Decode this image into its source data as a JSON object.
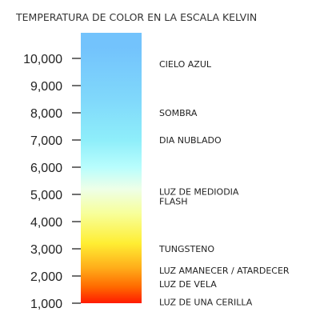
{
  "chart_data": {
    "type": "bar",
    "title": "TEMPERATURA DE COLOR EN LA ESCALA KELVIN",
    "xlabel": "",
    "ylabel": "",
    "ylim": [
      1000,
      10000
    ],
    "y_ticks": [
      {
        "value": 10000,
        "label": "10,000"
      },
      {
        "value": 9000,
        "label": "9,000"
      },
      {
        "value": 8000,
        "label": "8,000"
      },
      {
        "value": 7000,
        "label": "7,000"
      },
      {
        "value": 6000,
        "label": "6,000"
      },
      {
        "value": 5000,
        "label": "5,000"
      },
      {
        "value": 4000,
        "label": "4,000"
      },
      {
        "value": 3000,
        "label": "3,000"
      },
      {
        "value": 2000,
        "label": "2,000"
      },
      {
        "value": 1000,
        "label": "1,000"
      }
    ],
    "gradient_stops": [
      {
        "value": 1000,
        "color": "#ff1a00"
      },
      {
        "value": 1600,
        "color": "#ff6a00"
      },
      {
        "value": 2300,
        "color": "#ffad1a"
      },
      {
        "value": 3200,
        "color": "#ffee33"
      },
      {
        "value": 4300,
        "color": "#f7ff9a"
      },
      {
        "value": 5200,
        "color": "#eeffe8"
      },
      {
        "value": 6000,
        "color": "#b8fdfd"
      },
      {
        "value": 7000,
        "color": "#8eeefa"
      },
      {
        "value": 8500,
        "color": "#80d8fb"
      },
      {
        "value": 10400,
        "color": "#73c3fc"
      }
    ],
    "annotations": [
      {
        "value": 9800,
        "label": "CIELO AZUL"
      },
      {
        "value": 8000,
        "label": "SOMBRA"
      },
      {
        "value": 7000,
        "label": "DIA NUBLADO"
      },
      {
        "value": 5100,
        "label": "LUZ DE MEDIODIA"
      },
      {
        "value": 4750,
        "label": "FLASH"
      },
      {
        "value": 3000,
        "label": "TUNGSTENO"
      },
      {
        "value": 2200,
        "label": "LUZ AMANECER / ATARDECER"
      },
      {
        "value": 1700,
        "label": "LUZ DE VELA"
      },
      {
        "value": 1050,
        "label": "LUZ DE UNA CERILLA"
      }
    ]
  }
}
